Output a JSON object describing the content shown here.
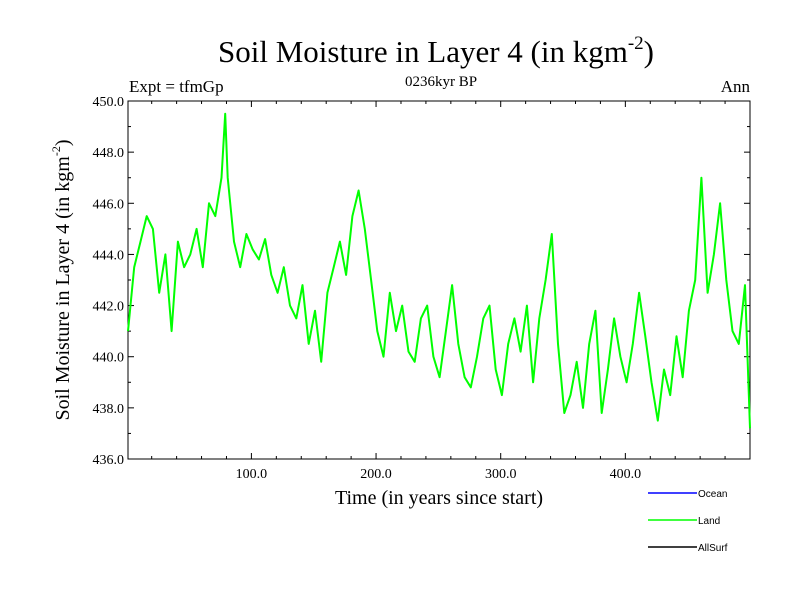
{
  "chart_data": {
    "type": "line",
    "title": "Soil Moisture in Layer 4 (in kgm",
    "title_sup": "-2",
    "title_close": ")",
    "subtitle_left": "Expt = tfmGp",
    "subtitle_center": "0236kyr BP",
    "subtitle_right": "Ann",
    "xlabel": "Time (in years since start)",
    "ylabel": "Soil Moisture in Layer 4 (in kgm",
    "ylabel_sup": "-2",
    "ylabel_close": ")",
    "xlim": [
      1,
      500
    ],
    "ylim": [
      436.0,
      450.0
    ],
    "xticks": [
      100,
      200,
      300,
      400
    ],
    "xtick_labels": [
      "100.0",
      "200.0",
      "300.0",
      "400.0"
    ],
    "yticks": [
      436,
      438,
      440,
      442,
      444,
      446,
      448,
      450
    ],
    "ytick_labels": [
      "436.0",
      "438.0",
      "440.0",
      "442.0",
      "444.0",
      "446.0",
      "448.0",
      "450.0"
    ],
    "legend_position": "bottom-right, outside plot",
    "series": [
      {
        "name": "Ocean",
        "color": "#0000ff",
        "x": [],
        "values": []
      },
      {
        "name": "Land",
        "color": "#00ff00",
        "x": [
          1,
          6,
          11,
          16,
          21,
          26,
          31,
          36,
          41,
          46,
          51,
          56,
          61,
          66,
          71,
          76,
          79,
          81,
          86,
          91,
          96,
          101,
          106,
          111,
          116,
          121,
          126,
          131,
          136,
          141,
          146,
          151,
          156,
          161,
          166,
          171,
          176,
          181,
          186,
          191,
          196,
          201,
          206,
          211,
          216,
          221,
          226,
          231,
          236,
          241,
          246,
          251,
          256,
          261,
          266,
          271,
          276,
          281,
          286,
          291,
          296,
          301,
          306,
          311,
          316,
          321,
          326,
          331,
          336,
          341,
          346,
          351,
          356,
          361,
          366,
          371,
          376,
          381,
          386,
          391,
          396,
          401,
          406,
          411,
          416,
          421,
          426,
          431,
          436,
          441,
          446,
          451,
          456,
          461,
          466,
          471,
          476,
          481,
          486,
          491,
          496,
          500
        ],
        "values": [
          441.0,
          443.5,
          444.5,
          445.5,
          445.0,
          442.5,
          444.0,
          441.0,
          444.5,
          443.5,
          444.0,
          445.0,
          443.5,
          446.0,
          445.5,
          447.0,
          449.5,
          447.0,
          444.5,
          443.5,
          444.8,
          444.2,
          443.8,
          444.6,
          443.2,
          442.5,
          443.5,
          442.0,
          441.5,
          442.8,
          440.5,
          441.8,
          439.8,
          442.5,
          443.5,
          444.5,
          443.2,
          445.5,
          446.5,
          445.0,
          443.0,
          441.0,
          440.0,
          442.5,
          441.0,
          442.0,
          440.2,
          439.8,
          441.5,
          442.0,
          440.0,
          439.2,
          441.0,
          442.8,
          440.5,
          439.2,
          438.8,
          440.0,
          441.5,
          442.0,
          439.5,
          438.5,
          440.5,
          441.5,
          440.2,
          442.0,
          439.0,
          441.5,
          443.0,
          444.8,
          440.5,
          437.8,
          438.5,
          439.8,
          438.0,
          440.5,
          441.8,
          437.8,
          439.5,
          441.5,
          440.0,
          439.0,
          440.5,
          442.5,
          440.8,
          439.0,
          437.5,
          439.5,
          438.5,
          440.8,
          439.2,
          441.8,
          443.0,
          447.0,
          442.5,
          444.0,
          446.0,
          443.0,
          441.0,
          440.5,
          442.8,
          437.2
        ]
      },
      {
        "name": "AllSurf",
        "color": "#000000",
        "x": [],
        "values": []
      }
    ]
  }
}
